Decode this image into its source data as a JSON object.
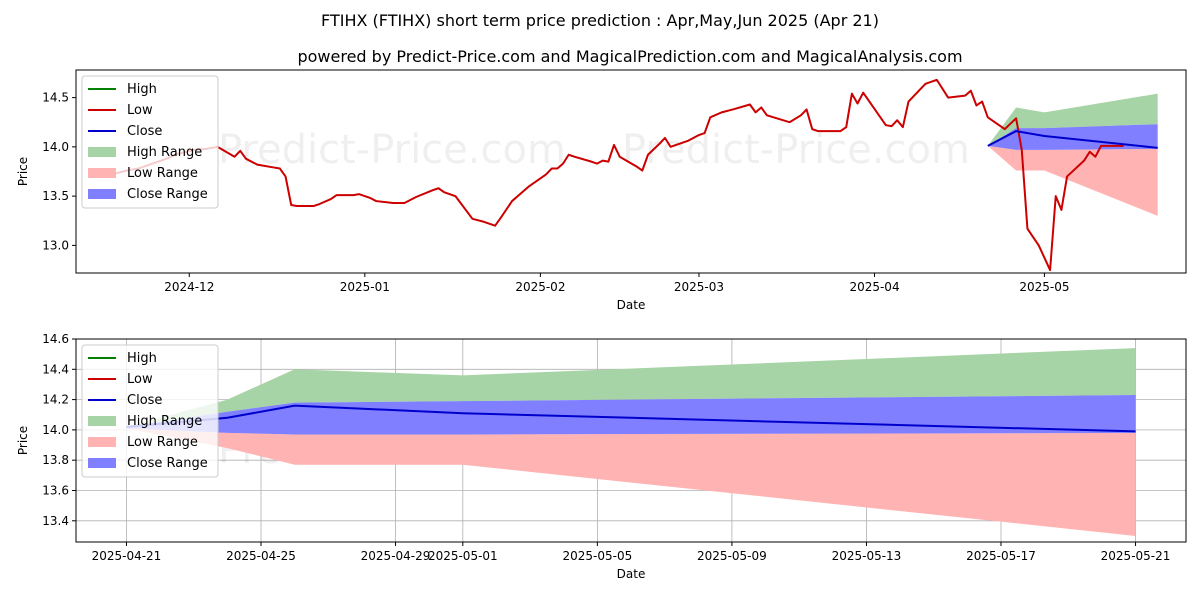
{
  "title": "FTIHX (FTIHX) short term price prediction : Apr,May,Jun 2025 (Apr 21)",
  "subtitle": "powered by Predict-Price.com and MagicalPrediction.com and MagicalAnalysis.com",
  "watermark": "Predict-Price.com",
  "colors": {
    "high": "#008000",
    "low": "#cc0000",
    "close": "#0000cc",
    "high_range": "#a6d4a6",
    "low_range": "#ffb3b3",
    "close_range": "#7f7fff"
  },
  "legend": {
    "position": "top-left",
    "items": [
      {
        "key": "high",
        "label": "High",
        "kind": "line"
      },
      {
        "key": "low",
        "label": "Low",
        "kind": "line"
      },
      {
        "key": "close",
        "label": "Close",
        "kind": "line"
      },
      {
        "key": "high_range",
        "label": "High Range",
        "kind": "patch"
      },
      {
        "key": "low_range",
        "label": "Low Range",
        "kind": "patch"
      },
      {
        "key": "close_range",
        "label": "Close Range",
        "kind": "patch"
      }
    ]
  },
  "chart_data": [
    {
      "type": "line",
      "xlabel": "Date",
      "ylabel": "Price",
      "xlim": [
        "2024-11-11",
        "2025-05-26"
      ],
      "ylim": [
        12.72,
        14.78
      ],
      "grid": false,
      "x_ticks": [
        {
          "date": "2024-12-01",
          "label": "2024-12"
        },
        {
          "date": "2025-01-01",
          "label": "2025-01"
        },
        {
          "date": "2025-02-01",
          "label": "2025-02"
        },
        {
          "date": "2025-03-01",
          "label": "2025-03"
        },
        {
          "date": "2025-04-01",
          "label": "2025-04"
        },
        {
          "date": "2025-05-01",
          "label": "2025-05"
        }
      ],
      "y_ticks": [
        13.0,
        13.5,
        14.0,
        14.5
      ],
      "y_tick_labels": [
        "13.0",
        "13.5",
        "14.0",
        "14.5"
      ],
      "series": [
        {
          "name": "Low",
          "key": "low",
          "points": [
            [
              "2024-11-18",
              13.73
            ],
            [
              "2024-11-20",
              13.76
            ],
            [
              "2024-11-22",
              13.78
            ],
            [
              "2024-11-25",
              13.84
            ],
            [
              "2024-11-27",
              13.88
            ],
            [
              "2024-11-29",
              13.93
            ],
            [
              "2024-12-02",
              13.97
            ],
            [
              "2024-12-04",
              13.98
            ],
            [
              "2024-12-06",
              14.0
            ],
            [
              "2024-12-09",
              13.9
            ],
            [
              "2024-12-10",
              13.96
            ],
            [
              "2024-12-11",
              13.88
            ],
            [
              "2024-12-13",
              13.82
            ],
            [
              "2024-12-16",
              13.79
            ],
            [
              "2024-12-17",
              13.78
            ],
            [
              "2024-12-18",
              13.7
            ],
            [
              "2024-12-19",
              13.41
            ],
            [
              "2024-12-20",
              13.4
            ],
            [
              "2024-12-23",
              13.4
            ],
            [
              "2024-12-24",
              13.42
            ],
            [
              "2024-12-26",
              13.47
            ],
            [
              "2024-12-27",
              13.51
            ],
            [
              "2024-12-30",
              13.51
            ],
            [
              "2024-12-31",
              13.52
            ],
            [
              "2025-01-02",
              13.48
            ],
            [
              "2025-01-03",
              13.45
            ],
            [
              "2025-01-06",
              13.43
            ],
            [
              "2025-01-07",
              13.43
            ],
            [
              "2025-01-08",
              13.43
            ],
            [
              "2025-01-10",
              13.49
            ],
            [
              "2025-01-13",
              13.56
            ],
            [
              "2025-01-14",
              13.58
            ],
            [
              "2025-01-15",
              13.54
            ],
            [
              "2025-01-16",
              13.52
            ],
            [
              "2025-01-17",
              13.5
            ],
            [
              "2025-01-20",
              13.27
            ],
            [
              "2025-01-22",
              13.24
            ],
            [
              "2025-01-24",
              13.2
            ],
            [
              "2025-01-25",
              13.28
            ],
            [
              "2025-01-27",
              13.45
            ],
            [
              "2025-01-28",
              13.5
            ],
            [
              "2025-01-30",
              13.6
            ],
            [
              "2025-02-02",
              13.72
            ],
            [
              "2025-02-03",
              13.78
            ],
            [
              "2025-02-04",
              13.78
            ],
            [
              "2025-02-05",
              13.83
            ],
            [
              "2025-02-06",
              13.92
            ],
            [
              "2025-02-07",
              13.9
            ],
            [
              "2025-02-10",
              13.85
            ],
            [
              "2025-02-11",
              13.83
            ],
            [
              "2025-02-12",
              13.86
            ],
            [
              "2025-02-13",
              13.85
            ],
            [
              "2025-02-14",
              14.02
            ],
            [
              "2025-02-15",
              13.9
            ],
            [
              "2025-02-18",
              13.8
            ],
            [
              "2025-02-19",
              13.76
            ],
            [
              "2025-02-20",
              13.92
            ],
            [
              "2025-02-22",
              14.03
            ],
            [
              "2025-02-23",
              14.09
            ],
            [
              "2025-02-24",
              14.0
            ],
            [
              "2025-02-27",
              14.06
            ],
            [
              "2025-03-01",
              14.12
            ],
            [
              "2025-03-02",
              14.14
            ],
            [
              "2025-03-03",
              14.3
            ],
            [
              "2025-03-05",
              14.35
            ],
            [
              "2025-03-07",
              14.38
            ],
            [
              "2025-03-10",
              14.43
            ],
            [
              "2025-03-11",
              14.35
            ],
            [
              "2025-03-12",
              14.4
            ],
            [
              "2025-03-13",
              14.32
            ],
            [
              "2025-03-17",
              14.25
            ],
            [
              "2025-03-19",
              14.32
            ],
            [
              "2025-03-20",
              14.38
            ],
            [
              "2025-03-21",
              14.18
            ],
            [
              "2025-03-22",
              14.16
            ],
            [
              "2025-03-25",
              14.16
            ],
            [
              "2025-03-26",
              14.16
            ],
            [
              "2025-03-27",
              14.2
            ],
            [
              "2025-03-28",
              14.54
            ],
            [
              "2025-03-29",
              14.44
            ],
            [
              "2025-03-30",
              14.55
            ],
            [
              "2025-04-03",
              14.22
            ],
            [
              "2025-04-04",
              14.21
            ],
            [
              "2025-04-05",
              14.27
            ],
            [
              "2025-04-06",
              14.2
            ],
            [
              "2025-04-07",
              14.46
            ],
            [
              "2025-04-10",
              14.64
            ],
            [
              "2025-04-12",
              14.68
            ],
            [
              "2025-04-14",
              14.5
            ],
            [
              "2025-04-17",
              14.52
            ],
            [
              "2025-04-18",
              14.57
            ],
            [
              "2025-04-19",
              14.42
            ],
            [
              "2025-04-20",
              14.46
            ],
            [
              "2025-04-21",
              14.3
            ],
            [
              "2025-04-24",
              14.18
            ],
            [
              "2025-04-26",
              14.29
            ],
            [
              "2025-04-27",
              13.97
            ],
            [
              "2025-04-28",
              13.17
            ],
            [
              "2025-04-30",
              13.0
            ],
            [
              "2025-05-02",
              12.75
            ],
            [
              "2025-05-03",
              13.5
            ],
            [
              "2025-05-04",
              13.36
            ],
            [
              "2025-05-05",
              13.7
            ],
            [
              "2025-05-08",
              13.86
            ],
            [
              "2025-05-09",
              13.95
            ],
            [
              "2025-05-10",
              13.9
            ],
            [
              "2025-05-11",
              14.01
            ],
            [
              "2025-05-15",
              14.01
            ]
          ]
        }
      ],
      "forecast": {
        "dates": [
          "2025-04-21",
          "2025-04-26",
          "2025-05-01",
          "2025-05-21"
        ],
        "high_range": {
          "upper": [
            14.01,
            14.4,
            14.35,
            14.54
          ],
          "lower": [
            14.01,
            14.19,
            14.19,
            14.23
          ]
        },
        "low_range": {
          "upper": [
            14.01,
            13.97,
            13.97,
            13.98
          ],
          "lower": [
            14.01,
            13.76,
            13.76,
            13.3
          ]
        },
        "close_range": {
          "upper": [
            14.01,
            14.19,
            14.19,
            14.23
          ],
          "lower": [
            14.01,
            13.97,
            13.97,
            13.98
          ]
        },
        "close": [
          14.01,
          14.16,
          14.11,
          13.99
        ]
      }
    },
    {
      "type": "line",
      "xlabel": "Date",
      "ylabel": "Price",
      "xlim": [
        "2025-04-19.5",
        "2025-05-22.5"
      ],
      "ylim": [
        13.26,
        14.6
      ],
      "grid": true,
      "x_ticks": [
        {
          "date": "2025-04-21",
          "label": "2025-04-21"
        },
        {
          "date": "2025-04-25",
          "label": "2025-04-25"
        },
        {
          "date": "2025-04-29",
          "label": "2025-04-29"
        },
        {
          "date": "2025-05-01",
          "label": "2025-05-01"
        },
        {
          "date": "2025-05-05",
          "label": "2025-05-05"
        },
        {
          "date": "2025-05-09",
          "label": "2025-05-09"
        },
        {
          "date": "2025-05-13",
          "label": "2025-05-13"
        },
        {
          "date": "2025-05-17",
          "label": "2025-05-17"
        },
        {
          "date": "2025-05-21",
          "label": "2025-05-21"
        }
      ],
      "y_ticks": [
        13.4,
        13.6,
        13.8,
        14.0,
        14.2,
        14.4,
        14.6
      ],
      "y_tick_labels": [
        "13.4",
        "13.6",
        "13.8",
        "14.0",
        "14.2",
        "14.4",
        "14.6"
      ],
      "forecast": {
        "dates": [
          "2025-04-21",
          "2025-04-24",
          "2025-04-26",
          "2025-05-01",
          "2025-05-21"
        ],
        "high_range": {
          "upper": [
            14.02,
            14.2,
            14.4,
            14.36,
            14.54
          ],
          "lower": [
            14.02,
            14.12,
            14.18,
            14.19,
            14.23
          ]
        },
        "low_range": {
          "upper": [
            14.01,
            13.98,
            13.97,
            13.97,
            13.98
          ],
          "lower": [
            14.01,
            13.88,
            13.77,
            13.77,
            13.3
          ]
        },
        "close_range": {
          "upper": [
            14.02,
            14.12,
            14.18,
            14.19,
            14.23
          ],
          "lower": [
            14.01,
            13.98,
            13.97,
            13.97,
            13.98
          ]
        },
        "close": [
          14.02,
          14.08,
          14.16,
          14.11,
          13.99
        ]
      }
    }
  ]
}
